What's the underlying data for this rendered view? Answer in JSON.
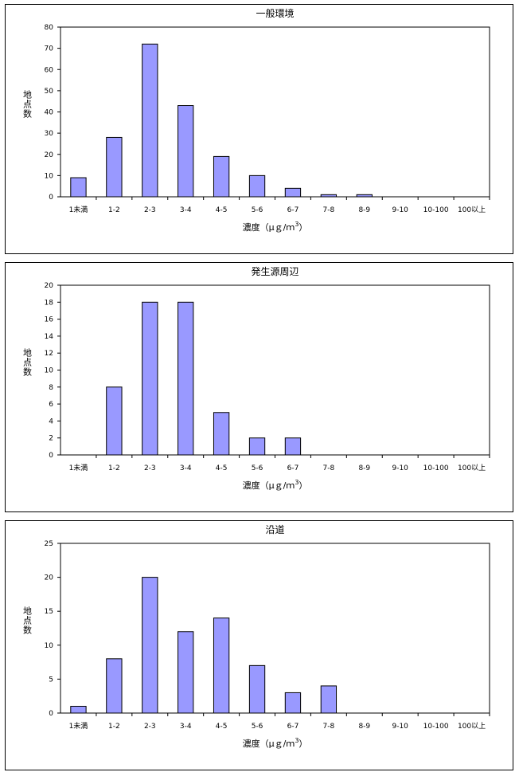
{
  "chart_data": [
    {
      "type": "bar",
      "title": "一般環境",
      "ylabel": "地点数",
      "xlabel": "濃度（μｇ/ｍ3）",
      "categories": [
        "1未満",
        "1-2",
        "2-3",
        "3-4",
        "4-5",
        "5-6",
        "6-7",
        "7-8",
        "8-9",
        "9-10",
        "10-100",
        "100以上"
      ],
      "values": [
        9,
        28,
        72,
        43,
        19,
        10,
        4,
        1,
        1,
        0,
        0,
        0
      ],
      "ylim": [
        0,
        80
      ],
      "yticks": [
        0,
        10,
        20,
        30,
        40,
        50,
        60,
        70,
        80
      ],
      "grid": false,
      "bar_color": "#9999ff"
    },
    {
      "type": "bar",
      "title": "発生源周辺",
      "ylabel": "地点数",
      "xlabel": "濃度（μｇ/ｍ3）",
      "categories": [
        "1未満",
        "1-2",
        "2-3",
        "3-4",
        "4-5",
        "5-6",
        "6-7",
        "7-8",
        "8-9",
        "9-10",
        "10-100",
        "100以上"
      ],
      "values": [
        0,
        8,
        18,
        18,
        5,
        2,
        2,
        0,
        0,
        0,
        0,
        0
      ],
      "ylim": [
        0,
        20
      ],
      "yticks": [
        0,
        2,
        4,
        6,
        8,
        10,
        12,
        14,
        16,
        18,
        20
      ],
      "grid": false,
      "bar_color": "#9999ff"
    },
    {
      "type": "bar",
      "title": "沿道",
      "ylabel": "地点数",
      "xlabel": "濃度（μｇ/ｍ3）",
      "categories": [
        "1未満",
        "1-2",
        "2-3",
        "3-4",
        "4-5",
        "5-6",
        "6-7",
        "7-8",
        "8-9",
        "9-10",
        "10-100",
        "100以上"
      ],
      "values": [
        1,
        8,
        20,
        12,
        14,
        7,
        3,
        4,
        0,
        0,
        0,
        0
      ],
      "ylim": [
        0,
        25
      ],
      "yticks": [
        0,
        5,
        10,
        15,
        20,
        25
      ],
      "grid": false,
      "bar_color": "#9999ff"
    }
  ]
}
